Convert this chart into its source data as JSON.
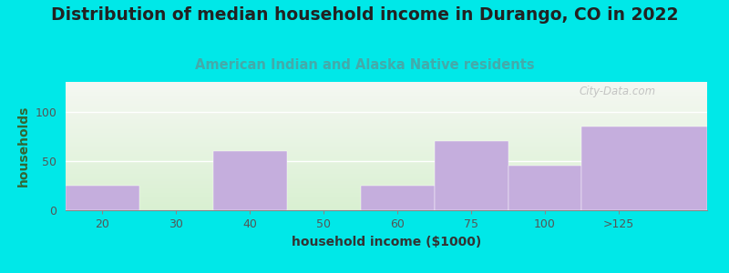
{
  "title": "Distribution of median household income in Durango, CO in 2022",
  "subtitle": "American Indian and Alaska Native residents",
  "xlabel": "household income ($1000)",
  "ylabel": "households",
  "bar_labels": [
    "20",
    "30",
    "40",
    "50",
    "60",
    "75",
    "100",
    ">125"
  ],
  "bar_values": [
    25,
    0,
    60,
    0,
    25,
    70,
    45,
    85
  ],
  "bar_color": "#c5aedd",
  "ylim": [
    0,
    130
  ],
  "yticks": [
    0,
    50,
    100
  ],
  "background_outer": "#00e8e8",
  "watermark": "City-Data.com",
  "title_fontsize": 13.5,
  "subtitle_fontsize": 10.5,
  "axis_label_fontsize": 10,
  "title_color": "#222222",
  "subtitle_color": "#44aaaa",
  "ylabel_color": "#336633",
  "xlabel_color": "#333333"
}
